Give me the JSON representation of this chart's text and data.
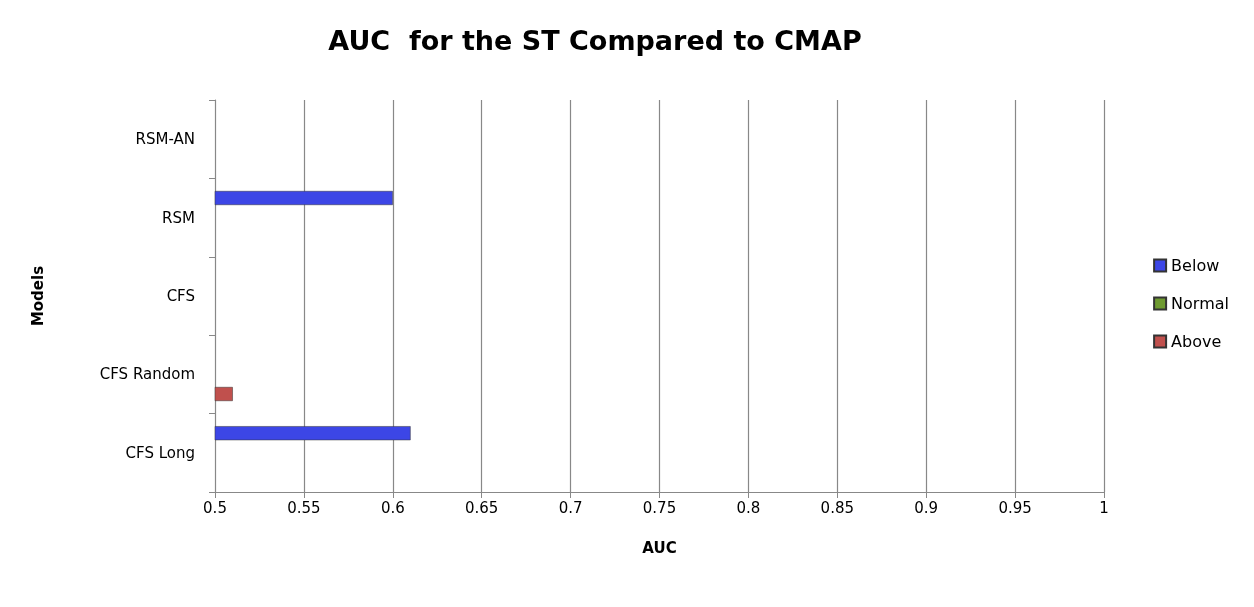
{
  "chart_data": {
    "type": "bar",
    "orientation": "horizontal",
    "title": "AUC  for the ST Compared to CMAP",
    "xlabel": "AUC",
    "ylabel": "Models",
    "categories": [
      "RSM-AN",
      "RSM",
      "CFS",
      "CFS Random",
      "CFS Long"
    ],
    "series": [
      {
        "name": "Below",
        "color": "#3c46e6",
        "values": [
          null,
          0.6,
          null,
          null,
          0.61
        ]
      },
      {
        "name": "Normal",
        "color": "#6e9a30",
        "values": [
          null,
          null,
          null,
          null,
          null
        ]
      },
      {
        "name": "Above",
        "color": "#c0504d",
        "values": [
          null,
          null,
          null,
          0.51,
          null
        ]
      }
    ],
    "xlim": [
      0.5,
      1
    ],
    "xticks": [
      0.5,
      0.55,
      0.6,
      0.65,
      0.7,
      0.75,
      0.8,
      0.85,
      0.9,
      0.95,
      1
    ],
    "grid": "x",
    "legend": "right"
  }
}
